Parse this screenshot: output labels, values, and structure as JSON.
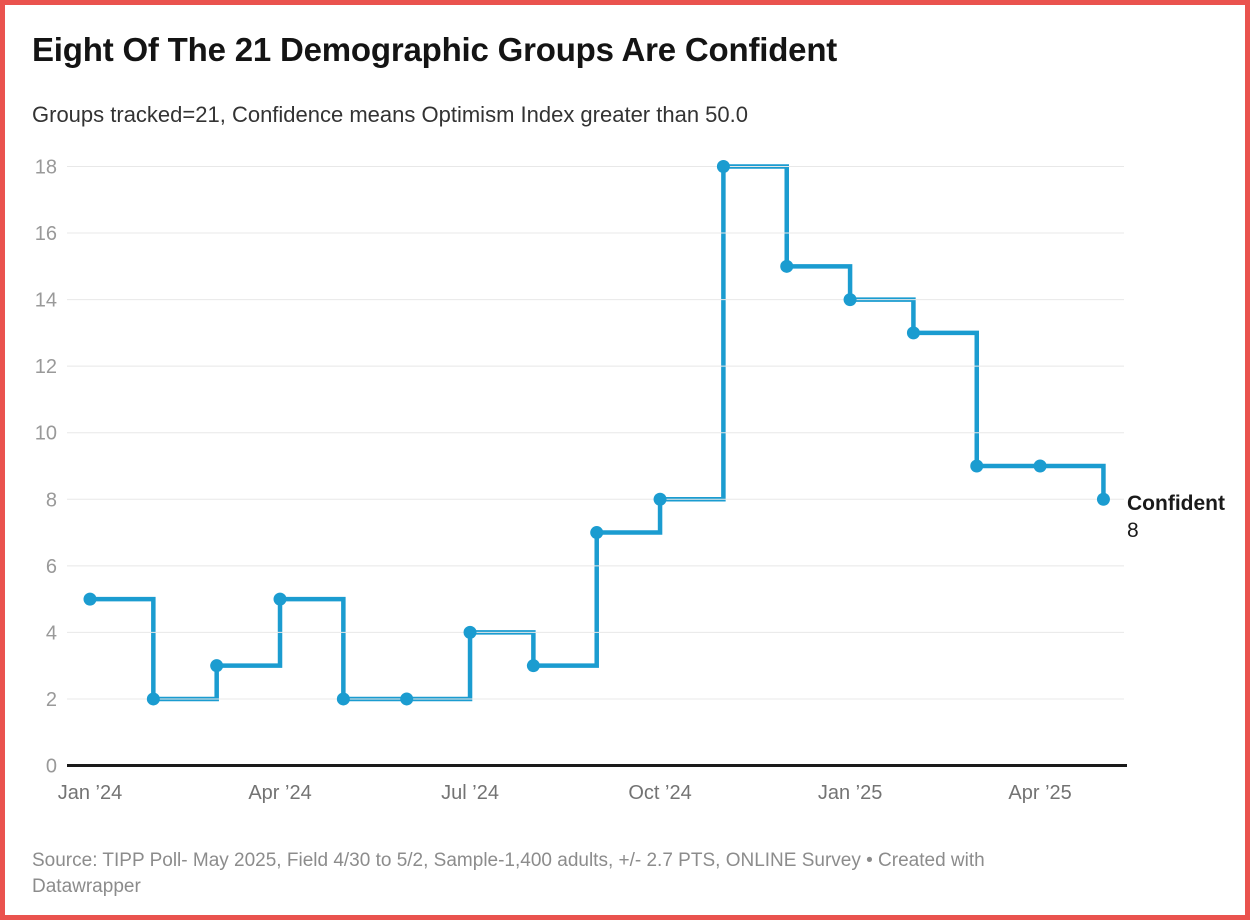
{
  "page": {
    "border_color": "#ea534e",
    "background_color": "#ffffff"
  },
  "header": {
    "title": "Eight Of The 21 Demographic Groups Are Confident",
    "subtitle": "Groups tracked=21, Confidence means Optimism Index greater than 50.0"
  },
  "chart_data": {
    "type": "line",
    "line_style": "step-after",
    "title": "Eight Of The 21 Demographic Groups Are Confident",
    "subtitle": "Groups tracked=21, Confidence means Optimism Index greater than 50.0",
    "x": [
      "Jan 2024",
      "Feb 2024",
      "Mar 2024",
      "Apr 2024",
      "May 2024",
      "Jun 2024",
      "Jul 2024",
      "Aug 2024",
      "Sep 2024",
      "Oct 2024",
      "Nov 2024",
      "Dec 2024",
      "Jan 2025",
      "Feb 2025",
      "Mar 2025",
      "Apr 2025",
      "May 2025"
    ],
    "series": [
      {
        "name": "Confident",
        "values": [
          5,
          2,
          3,
          5,
          2,
          2,
          4,
          3,
          7,
          8,
          18,
          15,
          14,
          13,
          9,
          9,
          8
        ]
      }
    ],
    "ylim": [
      0,
      18
    ],
    "y_ticks": [
      0,
      2,
      4,
      6,
      8,
      10,
      12,
      14,
      16,
      18
    ],
    "x_tick_labels": [
      "Jan ’24",
      "Apr ’24",
      "Jul ’24",
      "Oct ’24",
      "Jan ’25",
      "Apr ’25"
    ],
    "x_tick_month_index": [
      0,
      3,
      6,
      9,
      12,
      15
    ],
    "grid": true,
    "show_points": true,
    "line_color": "#1b9cd0",
    "legend_position": "end-of-line",
    "end_label": {
      "name": "Confident",
      "value": "8"
    }
  },
  "footer": {
    "source": "Source: TIPP Poll- May 2025, Field 4/30 to 5/2, Sample-1,400 adults, +/- 2.7 PTS, ONLINE Survey • Created with Datawrapper"
  }
}
